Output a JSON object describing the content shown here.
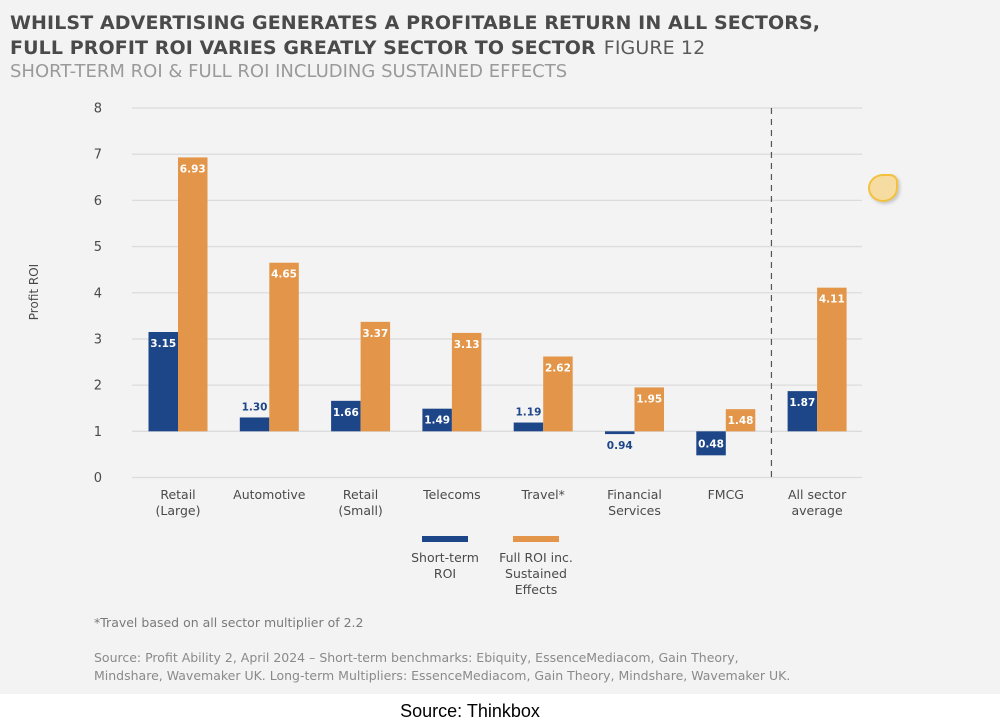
{
  "header": {
    "title_line1": "WHILST ADVERTISING GENERATES A PROFITABLE RETURN IN ALL SECTORS,",
    "title_line2": "FULL PROFIT ROI VARIES GREATLY SECTOR TO SECTOR",
    "figure_label": "FIGURE 12",
    "subtitle": "SHORT-TERM ROI & FULL ROI INCLUDING SUSTAINED EFFECTS"
  },
  "colors": {
    "short_term": "#1d4688",
    "full_roi": "#e3964a",
    "grid": "#dcdcdc",
    "panel": "#f3f3f3"
  },
  "chart_data": {
    "type": "bar",
    "title": "WHILST ADVERTISING GENERATES A PROFITABLE RETURN IN ALL SECTORS, FULL PROFIT ROI VARIES GREATLY SECTOR TO SECTOR",
    "subtitle": "SHORT-TERM ROI & FULL ROI INCLUDING SUSTAINED EFFECTS",
    "xlabel": "",
    "ylabel": "Profit ROI",
    "ylim": [
      0,
      8
    ],
    "yticks": [
      0,
      1,
      2,
      3,
      4,
      5,
      6,
      7,
      8
    ],
    "baseline": 1,
    "grid": true,
    "legend_position": "bottom-center",
    "categories": [
      [
        "Retail",
        "(Large)"
      ],
      [
        "Automotive"
      ],
      [
        "Retail",
        "(Small)"
      ],
      [
        "Telecoms"
      ],
      [
        "Travel*"
      ],
      [
        "Financial",
        "Services"
      ],
      [
        "FMCG"
      ],
      [
        "All sector",
        "average"
      ]
    ],
    "series": [
      {
        "name": "Short-term ROI",
        "legend_lines": [
          "Short-term",
          "ROI"
        ],
        "color": "#1d4688",
        "values": [
          3.15,
          1.3,
          1.66,
          1.49,
          1.19,
          0.94,
          0.48,
          1.87
        ],
        "labels": [
          "3.15",
          "1.30",
          "1.66",
          "1.49",
          "1.19",
          "0.94",
          "0.48",
          "1.87"
        ]
      },
      {
        "name": "Full ROI inc. Sustained Effects",
        "legend_lines": [
          "Full ROI inc.",
          "Sustained",
          "Effects"
        ],
        "color": "#e3964a",
        "values": [
          6.93,
          4.65,
          3.37,
          3.13,
          2.62,
          1.95,
          1.48,
          4.11
        ],
        "labels": [
          "6.93",
          "4.65",
          "3.37",
          "3.13",
          "2.62",
          "1.95",
          "1.48",
          "4.11"
        ]
      }
    ],
    "annotations": [
      "dashed separator before 'All sector average'"
    ]
  },
  "footnote": "*Travel based on all sector multiplier of 2.2",
  "source_panel": {
    "line1": "Source: Profit Ability 2, April 2024 – Short-term benchmarks: Ebiquity, EssenceMediacom, Gain Theory,",
    "line2": "Mindshare, Wavemaker UK. Long-term Multipliers: EssenceMediacom, Gain Theory, Mindshare, Wavemaker UK."
  },
  "source_bottom": "Source: Thinkbox"
}
